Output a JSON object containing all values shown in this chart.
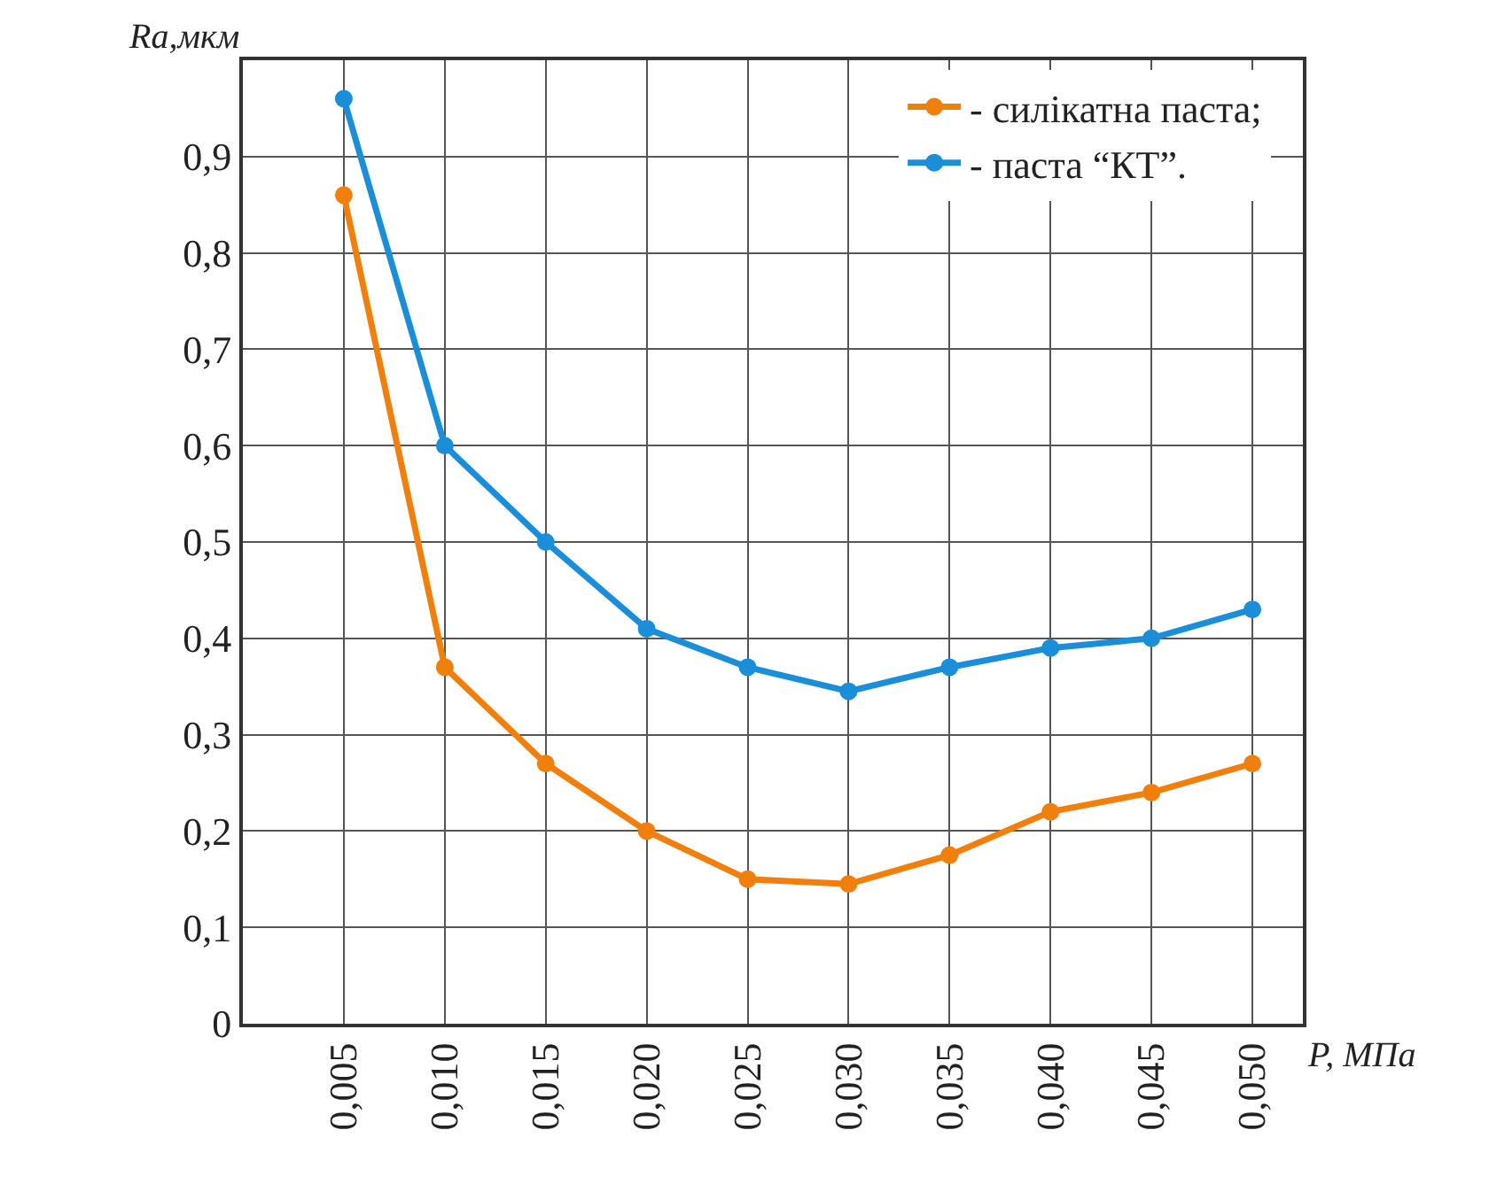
{
  "chart_data": {
    "type": "line",
    "xlabel": "P, МПа",
    "ylabel": "Ra,мкм",
    "categories": [
      "0,005",
      "0,010",
      "0,015",
      "0,020",
      "0,025",
      "0,030",
      "0,035",
      "0,040",
      "0,045",
      "0,050"
    ],
    "series": [
      {
        "name": "- силікатна паста;",
        "color": "#f07f0c",
        "values": [
          0.86,
          0.37,
          0.27,
          0.2,
          0.15,
          0.145,
          0.175,
          0.22,
          0.24,
          0.27
        ]
      },
      {
        "name": "- паста “КТ”.",
        "color": "#1a8ed8",
        "values": [
          0.96,
          0.6,
          0.5,
          0.41,
          0.37,
          0.345,
          0.37,
          0.39,
          0.4,
          0.43
        ]
      }
    ],
    "ylim": [
      0,
      1.0
    ],
    "yticks": [
      0,
      {
        "value": 0.1,
        "label": "0,1"
      },
      {
        "value": 0.2,
        "label": "0,2"
      },
      {
        "value": 0.3,
        "label": "0,3"
      },
      {
        "value": 0.4,
        "label": "0,4"
      },
      {
        "value": 0.5,
        "label": "0,5"
      },
      {
        "value": 0.6,
        "label": "0,6"
      },
      {
        "value": 0.7,
        "label": "0,7"
      },
      {
        "value": 0.8,
        "label": "0,8"
      },
      {
        "value": 0.9,
        "label": "0,9"
      }
    ],
    "grid": true,
    "legend": "top right",
    "marker": "circle",
    "line_style": "solid"
  }
}
